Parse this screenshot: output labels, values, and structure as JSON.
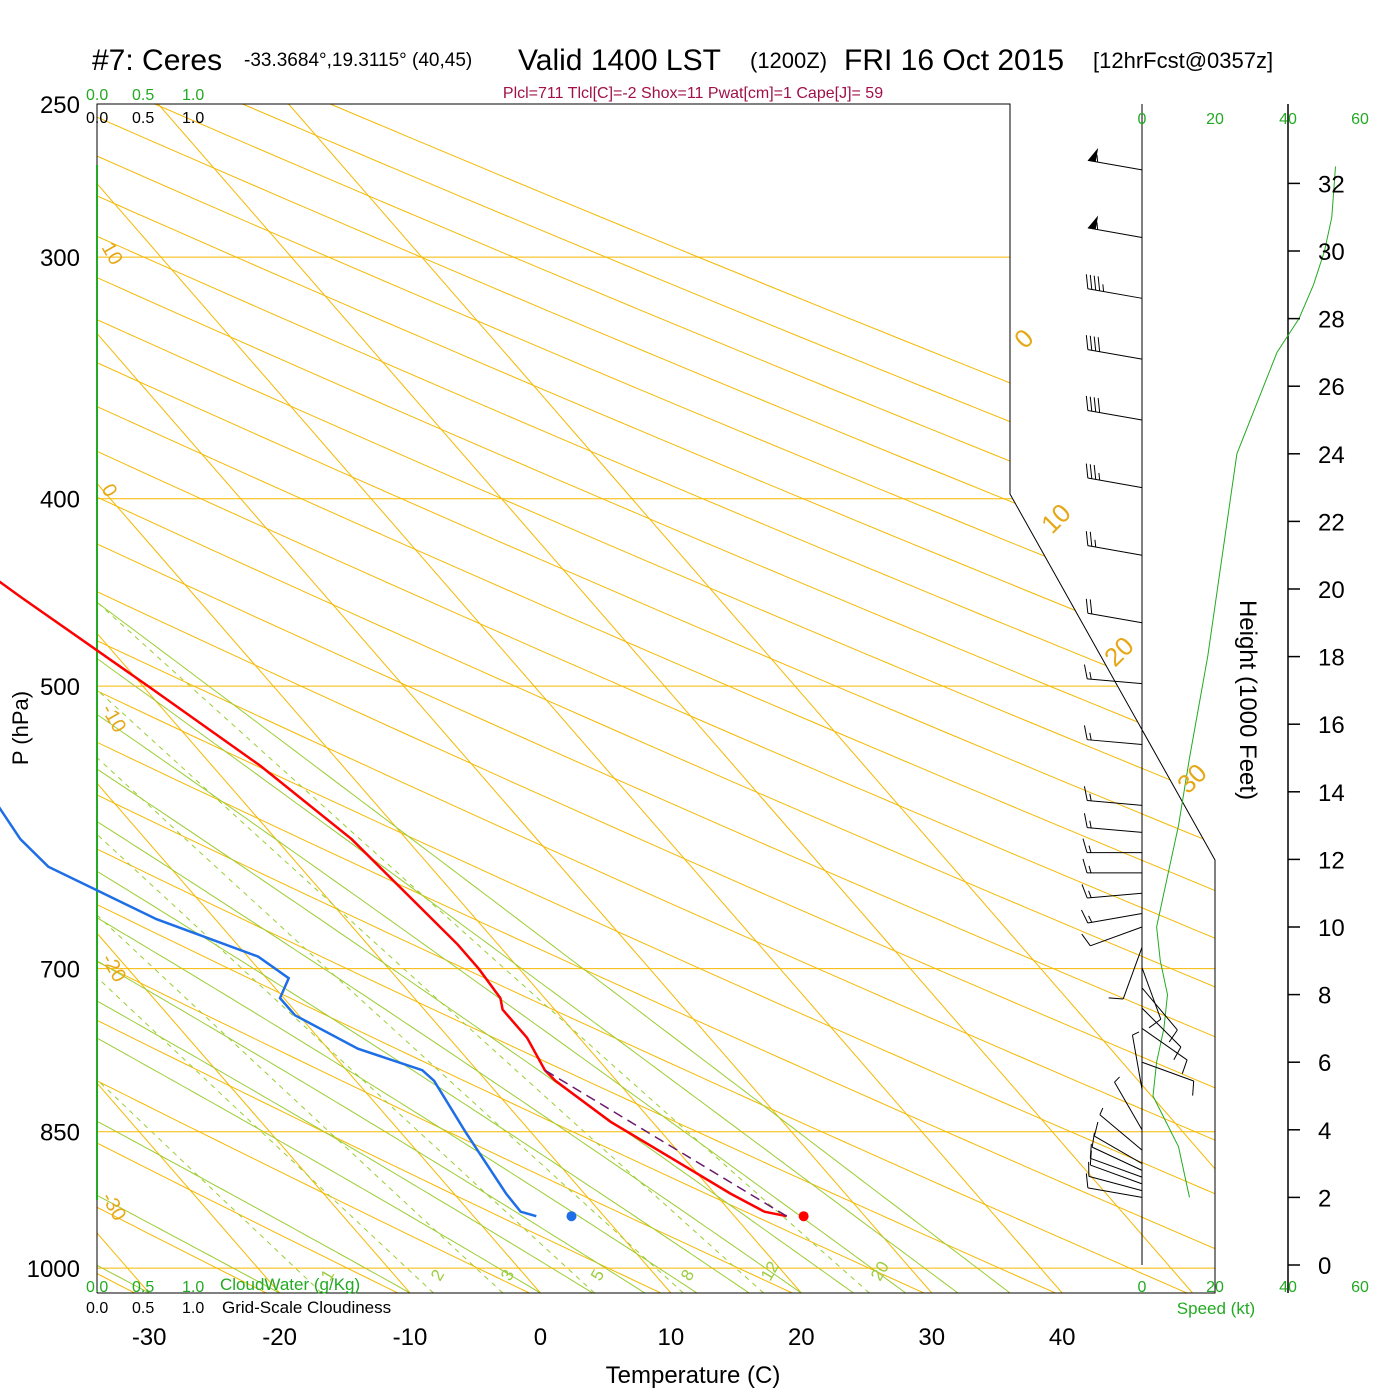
{
  "header": {
    "station": "#7: Ceres",
    "coords": "-33.3684°,19.3115° (40,45)",
    "valid": "Valid 1400 LST",
    "zulu": "(1200Z)",
    "date": "FRI 16 Oct 2015",
    "forecast": "[12hrFcst@0357z]",
    "indices": "Plcl=711 Tlcl[C]=-2 Shox=11 Pwat[cm]=1 Cape[J]= 59"
  },
  "scales": {
    "cloudwater_top_green": [
      "0.0",
      "0.5",
      "1.0"
    ],
    "cloudiness_top_black": [
      "0.0",
      "0.5",
      "1.0"
    ],
    "cloudwater_bottom_green": [
      "0.0",
      "0.5",
      "1.0"
    ],
    "cloudwater_label": "CloudWater (g/Kg)",
    "cloudiness_bottom_black": [
      "0.0",
      "0.5",
      "1.0"
    ],
    "cloudiness_label": "Grid-Scale Cloudiness",
    "speed_ticks": [
      "0",
      "20",
      "40",
      "60"
    ],
    "speed_label": "Speed (kt)"
  },
  "colors": {
    "temperature": "#ff0000",
    "dewpoint": "#1e6ee6",
    "parcel": "#6a1b6a",
    "isobar": "#f5b800",
    "isotherm": "#f5b800",
    "dry_adiabat": "#f5b800",
    "moist_adiabat": "#9acd32",
    "mixing_ratio": "#9acd32",
    "speed_profile": "#22aa22",
    "indices": "#a0104a",
    "green_text": "#22aa22"
  },
  "chart_data": {
    "type": "skew-t",
    "xlabel": "Temperature (C)",
    "ylabel": "P (hPa)",
    "right_ylabel": "Height (1000 Feet)",
    "x_ticks": [
      -30,
      -20,
      -10,
      0,
      10,
      20,
      30,
      40
    ],
    "x_range": [
      -34,
      36
    ],
    "p_range": [
      1030,
      250
    ],
    "pressure_levels": [
      250,
      300,
      400,
      500,
      700,
      850,
      1000
    ],
    "height_ticks_kft": [
      0,
      2,
      4,
      6,
      8,
      10,
      12,
      14,
      16,
      18,
      20,
      22,
      24,
      26,
      28,
      30,
      32
    ],
    "isotherm_labels": [
      "10",
      "0",
      "-10",
      "-20",
      "-30"
    ],
    "right_isotherm_labels": [
      "0",
      "10",
      "20",
      "30"
    ],
    "wet_adiabat_labels": [
      "1",
      "2",
      "3",
      "5",
      "8",
      "12",
      "20"
    ],
    "temperature": [
      [
        940,
        24.0
      ],
      [
        935,
        22.6
      ],
      [
        915,
        21.2
      ],
      [
        880,
        19.2
      ],
      [
        840,
        16.8
      ],
      [
        800,
        15.3
      ],
      [
        790,
        15.2
      ],
      [
        760,
        16.0
      ],
      [
        735,
        16.0
      ],
      [
        725,
        16.6
      ],
      [
        700,
        16.9
      ],
      [
        680,
        16.9
      ],
      [
        650,
        16.5
      ],
      [
        600,
        15.8
      ],
      [
        550,
        13.7
      ],
      [
        500,
        10.4
      ],
      [
        450,
        6.6
      ],
      [
        400,
        2.7
      ],
      [
        350,
        -2.5
      ],
      [
        300,
        -8.3
      ],
      [
        270,
        -11.3
      ]
    ],
    "dewpoint": [
      [
        940,
        4.8
      ],
      [
        935,
        3.9
      ],
      [
        915,
        4.0
      ],
      [
        850,
        5.0
      ],
      [
        800,
        6.0
      ],
      [
        790,
        5.8
      ],
      [
        770,
        2.3
      ],
      [
        740,
        -0.3
      ],
      [
        725,
        -0.3
      ],
      [
        708,
        1.7
      ],
      [
        690,
        0.8
      ],
      [
        660,
        -4.5
      ],
      [
        620,
        -9.3
      ],
      [
        600,
        -9.6
      ],
      [
        560,
        -8.7
      ],
      [
        520,
        -6.1
      ],
      [
        450,
        -2.0
      ],
      [
        400,
        0.7
      ],
      [
        370,
        1.0
      ],
      [
        340,
        -1.0
      ],
      [
        300,
        -6.5
      ],
      [
        270,
        -7.6
      ]
    ],
    "surface_temperature": [
      940,
      25.3
    ],
    "surface_dewpoint": [
      940,
      7.5
    ],
    "parcel_path": [
      [
        940,
        24.0
      ],
      [
        790,
        15.2
      ]
    ],
    "winds_kt": [
      {
        "h": 2.0,
        "speed": 10,
        "dir": 280
      },
      {
        "h": 2.2,
        "speed": 10,
        "dir": 285
      },
      {
        "h": 2.4,
        "speed": 10,
        "dir": 290
      },
      {
        "h": 2.6,
        "speed": 10,
        "dir": 290
      },
      {
        "h": 2.8,
        "speed": 9,
        "dir": 295
      },
      {
        "h": 3.0,
        "speed": 8,
        "dir": 300
      },
      {
        "h": 3.4,
        "speed": 6,
        "dir": 310
      },
      {
        "h": 4.0,
        "speed": 4,
        "dir": 330
      },
      {
        "h": 5.2,
        "speed": 3,
        "dir": 350
      },
      {
        "h": 6.0,
        "speed": 8,
        "dir": 110
      },
      {
        "h": 7.0,
        "speed": 10,
        "dir": 125
      },
      {
        "h": 7.6,
        "speed": 10,
        "dir": 135
      },
      {
        "h": 8.2,
        "speed": 10,
        "dir": 140
      },
      {
        "h": 8.8,
        "speed": 8,
        "dir": 160
      },
      {
        "h": 9.4,
        "speed": 8,
        "dir": 200
      },
      {
        "h": 10.0,
        "speed": 10,
        "dir": 250
      },
      {
        "h": 10.4,
        "speed": 15,
        "dir": 260
      },
      {
        "h": 11.0,
        "speed": 15,
        "dir": 265
      },
      {
        "h": 11.6,
        "speed": 15,
        "dir": 270
      },
      {
        "h": 12.2,
        "speed": 15,
        "dir": 270
      },
      {
        "h": 12.8,
        "speed": 15,
        "dir": 275
      },
      {
        "h": 13.6,
        "speed": 15,
        "dir": 275
      },
      {
        "h": 15.4,
        "speed": 15,
        "dir": 275
      },
      {
        "h": 17.2,
        "speed": 15,
        "dir": 275
      },
      {
        "h": 19.0,
        "speed": 20,
        "dir": 280
      },
      {
        "h": 21.0,
        "speed": 25,
        "dir": 280
      },
      {
        "h": 23.0,
        "speed": 35,
        "dir": 280
      },
      {
        "h": 25.0,
        "speed": 40,
        "dir": 280
      },
      {
        "h": 26.8,
        "speed": 40,
        "dir": 280
      },
      {
        "h": 28.6,
        "speed": 45,
        "dir": 280
      },
      {
        "h": 30.4,
        "speed": 55,
        "dir": 280
      },
      {
        "h": 32.4,
        "speed": 55,
        "dir": 280
      }
    ],
    "speed_profile_kt": [
      [
        2.0,
        13
      ],
      [
        2.5,
        12
      ],
      [
        3.5,
        10
      ],
      [
        5.0,
        3
      ],
      [
        6.0,
        4
      ],
      [
        7.0,
        6
      ],
      [
        8.0,
        7
      ],
      [
        9.0,
        5
      ],
      [
        10.0,
        4
      ],
      [
        11.5,
        7
      ],
      [
        13.0,
        10
      ],
      [
        15.0,
        13
      ],
      [
        18.0,
        18
      ],
      [
        21.0,
        22
      ],
      [
        24.0,
        26
      ],
      [
        27.0,
        37
      ],
      [
        28.0,
        43
      ],
      [
        29.0,
        47
      ],
      [
        30.0,
        50
      ],
      [
        31.0,
        52
      ],
      [
        32.5,
        53
      ]
    ]
  }
}
